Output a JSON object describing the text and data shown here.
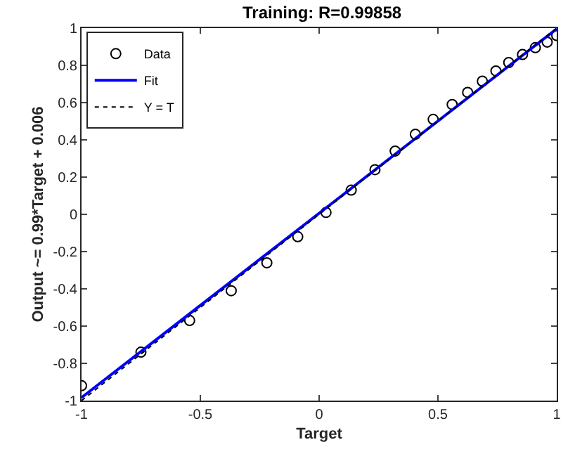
{
  "chart_data": {
    "type": "scatter",
    "title": "Training: R=0.99858",
    "xlabel": "Target",
    "ylabel": "Output ~= 0.99*Target + 0.006",
    "xlim": [
      -1,
      1
    ],
    "ylim": [
      -1,
      1
    ],
    "xticks": [
      -1,
      -0.5,
      0,
      0.5,
      1
    ],
    "yticks": [
      -1,
      -0.8,
      -0.6,
      -0.4,
      -0.2,
      0,
      0.2,
      0.4,
      0.6,
      0.8,
      1
    ],
    "grid": false,
    "legend": "top left",
    "series": [
      {
        "name": "Data",
        "marker": "circle",
        "color": "#000000",
        "x": [
          -1.0,
          -0.75,
          -0.545,
          -0.37,
          -0.22,
          -0.09,
          0.029,
          0.135,
          0.235,
          0.32,
          0.405,
          0.48,
          0.56,
          0.625,
          0.687,
          0.744,
          0.798,
          0.856,
          0.91,
          0.96,
          1.0
        ],
        "values": [
          -0.92,
          -0.74,
          -0.57,
          -0.41,
          -0.26,
          -0.12,
          0.01,
          0.13,
          0.24,
          0.34,
          0.43,
          0.51,
          0.59,
          0.655,
          0.715,
          0.77,
          0.815,
          0.858,
          0.895,
          0.925,
          0.96
        ]
      },
      {
        "name": "Fit",
        "type": "line",
        "line_style": "solid",
        "color": "#0000ff",
        "x": [
          -1,
          1
        ],
        "values": [
          -0.984,
          0.996
        ]
      },
      {
        "name": "Y = T",
        "type": "line",
        "line_style": "dotted",
        "color": "#000000",
        "x": [
          -1,
          1
        ],
        "values": [
          -1,
          1
        ]
      }
    ]
  }
}
